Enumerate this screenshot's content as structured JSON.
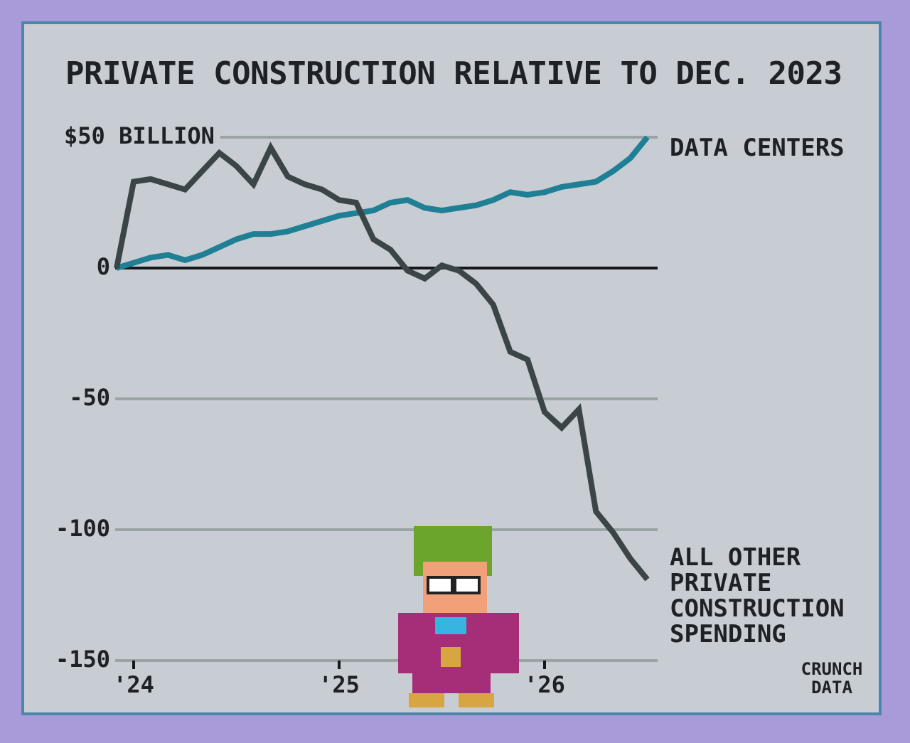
{
  "chart_data": {
    "type": "line",
    "title": "PRIVATE CONSTRUCTION RELATIVE TO DEC. 2023",
    "credit": "CRUNCH DATA",
    "x": [
      2023.917,
      2024.0,
      2024.083,
      2024.167,
      2024.25,
      2024.333,
      2024.417,
      2024.5,
      2024.583,
      2024.667,
      2024.75,
      2024.833,
      2024.917,
      2025.0,
      2025.083,
      2025.167,
      2025.25,
      2025.333,
      2025.417,
      2025.5,
      2025.583,
      2025.667,
      2025.75,
      2025.833,
      2025.917,
      2026.0,
      2026.083,
      2026.167,
      2026.25,
      2026.333,
      2026.417,
      2026.5
    ],
    "series": [
      {
        "name": "DATA CENTERS",
        "color": "#1f7f95",
        "values": [
          0,
          2,
          4,
          5,
          3,
          5,
          8,
          11,
          13,
          13,
          14,
          16,
          18,
          20,
          21,
          22,
          25,
          26,
          23,
          22,
          23,
          24,
          26,
          29,
          28,
          29,
          31,
          32,
          33,
          37,
          42,
          50
        ]
      },
      {
        "name": "ALL OTHER PRIVATE CONSTRUCTION SPENDING",
        "color": "#3b4548",
        "values": [
          0,
          33,
          34,
          32,
          30,
          37,
          44,
          39,
          32,
          46,
          35,
          32,
          30,
          26,
          25,
          11,
          7,
          -1,
          -4,
          1,
          -1,
          -6,
          -14,
          -32,
          -35,
          -55,
          -61,
          -54,
          -93,
          -101,
          -111,
          -119
        ]
      }
    ],
    "xlim": [
      2023.917,
      2026.5
    ],
    "xticks": [
      {
        "value": 2024,
        "label": "'24"
      },
      {
        "value": 2025,
        "label": "'25"
      },
      {
        "value": 2026,
        "label": "'26"
      }
    ],
    "ylim": [
      -150,
      50
    ],
    "yticks": [
      -150,
      -100,
      -50,
      0,
      {
        "value": 50,
        "label": "$50 BILLION"
      }
    ],
    "grid": true
  }
}
